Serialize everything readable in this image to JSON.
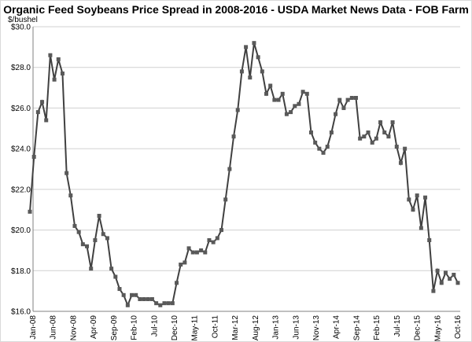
{
  "chart_data": {
    "type": "line",
    "title": "Organic Feed Soybeans Price Spread in 2008-2016 - USDA Market News Data - FOB Farm",
    "ylabel": "$/bushel",
    "xlabel": "",
    "ylim": [
      16.0,
      30.0
    ],
    "y_ticks": [
      "$16.0",
      "$18.0",
      "$20.0",
      "$22.0",
      "$24.0",
      "$26.0",
      "$28.0",
      "$30.0"
    ],
    "grid": "horizontal",
    "legend": "none",
    "line_color": "#404040",
    "marker_color": "#595959",
    "x_ticks": [
      "Jan-08",
      "Jun-08",
      "Nov-08",
      "Apr-09",
      "Sep-09",
      "Feb-10",
      "Jul-10",
      "Dec-10",
      "May-11",
      "Oct-11",
      "Mar-12",
      "Aug-12",
      "Jan-13",
      "Jun-13",
      "Nov-13",
      "Apr-14",
      "Sep-14",
      "Feb-15",
      "Jul-15",
      "Dec-15",
      "May-16",
      "Oct-16"
    ],
    "values": [
      20.9,
      23.6,
      25.8,
      26.3,
      25.4,
      28.6,
      27.4,
      28.4,
      27.7,
      22.8,
      21.7,
      20.2,
      19.9,
      19.3,
      19.2,
      18.1,
      19.5,
      20.7,
      19.8,
      19.6,
      18.1,
      17.7,
      17.1,
      16.8,
      16.3,
      16.8,
      16.8,
      16.6,
      16.6,
      16.6,
      16.6,
      16.4,
      16.3,
      16.4,
      16.4,
      16.4,
      17.4,
      18.3,
      18.4,
      19.1,
      18.9,
      18.9,
      19.0,
      18.9,
      19.5,
      19.4,
      19.6,
      20.0,
      21.5,
      23.0,
      24.6,
      25.9,
      27.8,
      29.0,
      27.5,
      29.2,
      28.5,
      27.8,
      26.7,
      27.1,
      26.4,
      26.4,
      26.7,
      25.7,
      25.8,
      26.1,
      26.2,
      26.8,
      26.7,
      24.8,
      24.3,
      24.0,
      23.8,
      24.1,
      24.8,
      25.7,
      26.4,
      26.0,
      26.4,
      26.5,
      26.5,
      24.5,
      24.6,
      24.8,
      24.3,
      24.5,
      25.3,
      24.8,
      24.6,
      25.3,
      24.1,
      23.3,
      24.0,
      21.5,
      21.0,
      21.7,
      20.1,
      21.6,
      19.5,
      17.0,
      18.0,
      17.4,
      17.9,
      17.6,
      17.8,
      17.4
    ]
  }
}
